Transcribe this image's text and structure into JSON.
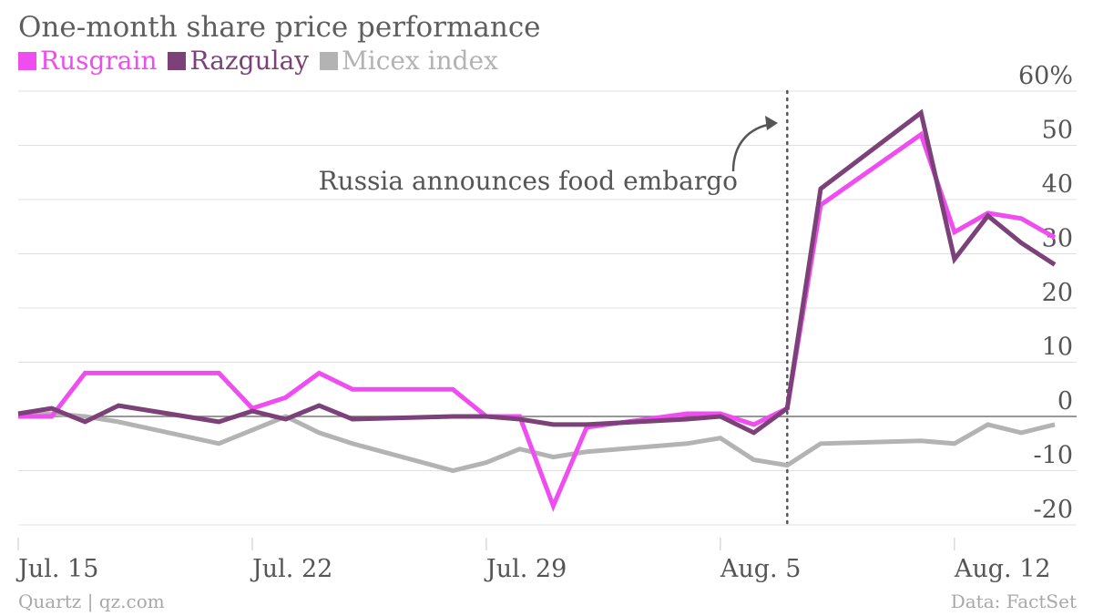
{
  "title": "One-month share price performance",
  "source": "Quartz | qz.com",
  "credit": "Data: FactSet",
  "chart_data": {
    "type": "line",
    "title": "One-month share price performance",
    "xlabel": "",
    "ylabel": "",
    "ylim": [
      -20,
      60
    ],
    "y_ticks": [
      -20,
      -10,
      0,
      10,
      20,
      30,
      40,
      50,
      60
    ],
    "y_tick_labels": [
      "-20",
      "-10",
      "0",
      "10",
      "20",
      "30",
      "40",
      "50",
      "60%"
    ],
    "x_range": [
      "2014-07-15",
      "2014-08-15"
    ],
    "x_ticks": [
      "2014-07-15",
      "2014-07-22",
      "2014-07-29",
      "2014-08-05",
      "2014-08-12"
    ],
    "x_tick_labels": [
      "Jul. 15",
      "Jul. 22",
      "Jul. 29",
      "Aug. 5",
      "Aug. 12"
    ],
    "grid": true,
    "legend_position": "top-left",
    "annotation": {
      "text": "Russia announces food embargo",
      "x": "2014-08-07"
    },
    "series": [
      {
        "name": "Rusgrain",
        "color": "#f04df0",
        "x": [
          "2014-07-15",
          "2014-07-16",
          "2014-07-17",
          "2014-07-18",
          "2014-07-21",
          "2014-07-22",
          "2014-07-23",
          "2014-07-24",
          "2014-07-25",
          "2014-07-28",
          "2014-07-29",
          "2014-07-30",
          "2014-07-31",
          "2014-08-01",
          "2014-08-04",
          "2014-08-05",
          "2014-08-06",
          "2014-08-07",
          "2014-08-08",
          "2014-08-11",
          "2014-08-12",
          "2014-08-13",
          "2014-08-14",
          "2014-08-15"
        ],
        "values": [
          0,
          0,
          8,
          8,
          8,
          1.5,
          3.5,
          8,
          5,
          5,
          0,
          0,
          -16.5,
          -2,
          0.5,
          0.5,
          -1.5,
          1.5,
          39,
          52,
          34,
          37.5,
          36.5,
          33
        ]
      },
      {
        "name": "Razgulay",
        "color": "#7b4178",
        "x": [
          "2014-07-15",
          "2014-07-16",
          "2014-07-17",
          "2014-07-18",
          "2014-07-21",
          "2014-07-22",
          "2014-07-23",
          "2014-07-24",
          "2014-07-25",
          "2014-07-28",
          "2014-07-29",
          "2014-07-30",
          "2014-07-31",
          "2014-08-01",
          "2014-08-04",
          "2014-08-05",
          "2014-08-06",
          "2014-08-07",
          "2014-08-08",
          "2014-08-11",
          "2014-08-12",
          "2014-08-13",
          "2014-08-14",
          "2014-08-15"
        ],
        "values": [
          0.5,
          1.5,
          -1,
          2,
          -1,
          1,
          -0.5,
          2,
          -0.5,
          0,
          0,
          -0.5,
          -1.5,
          -1.5,
          -0.5,
          0,
          -3,
          1.5,
          42,
          56,
          29,
          37,
          32,
          28
        ]
      },
      {
        "name": "Micex index",
        "color": "#b3b3b3",
        "x": [
          "2014-07-15",
          "2014-07-16",
          "2014-07-17",
          "2014-07-18",
          "2014-07-21",
          "2014-07-22",
          "2014-07-23",
          "2014-07-24",
          "2014-07-25",
          "2014-07-28",
          "2014-07-29",
          "2014-07-30",
          "2014-07-31",
          "2014-08-01",
          "2014-08-04",
          "2014-08-05",
          "2014-08-06",
          "2014-08-07",
          "2014-08-08",
          "2014-08-11",
          "2014-08-12",
          "2014-08-13",
          "2014-08-14",
          "2014-08-15"
        ],
        "values": [
          0,
          0.5,
          0,
          -1,
          -5,
          -2.5,
          0,
          -3,
          -5,
          -10,
          -8.5,
          -6,
          -7.5,
          -6.5,
          -5,
          -4,
          -8,
          -9,
          -5,
          -4.5,
          -5,
          -1.5,
          -3,
          -1.5
        ]
      }
    ]
  }
}
